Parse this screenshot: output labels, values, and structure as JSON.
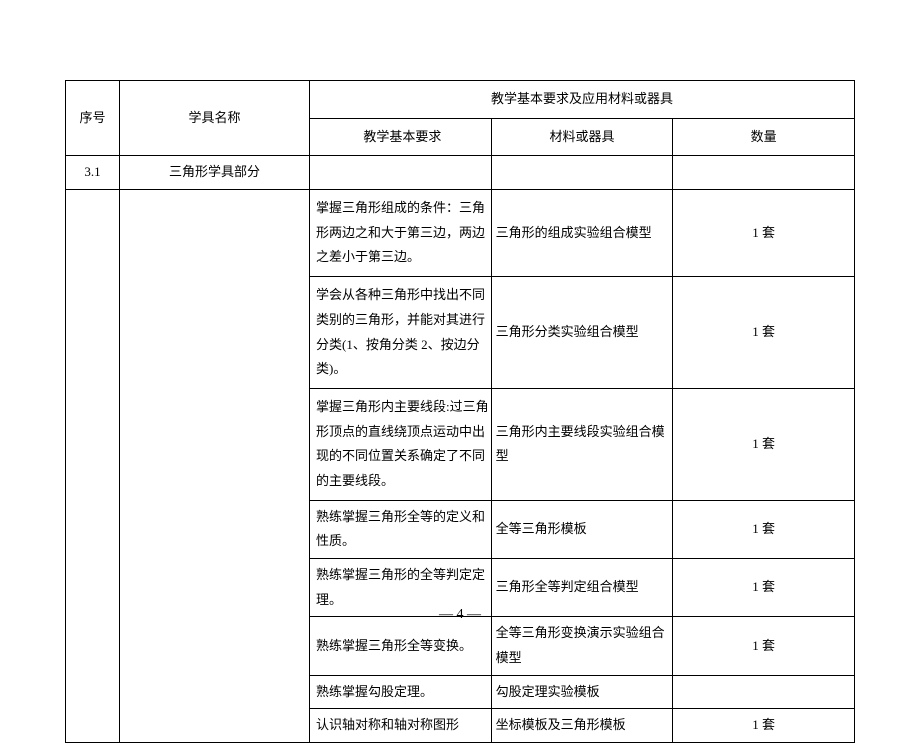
{
  "headers": {
    "seq": "序号",
    "name": "学具名称",
    "group": "教学基本要求及应用材料或器具",
    "req": "教学基本要求",
    "mat": "材料或器具",
    "qty": "数量"
  },
  "section": {
    "seq": "3.1",
    "name": "三角形学具部分"
  },
  "rows": [
    {
      "req": "掌握三角形组成的条件：三角形两边之和大于第三边，两边之差小于第三边。",
      "mat": "三角形的组成实验组合模型",
      "qty": "1 套"
    },
    {
      "req": "学会从各种三角形中找出不同类别的三角形，并能对其进行分类(1、按角分类 2、按边分类)。",
      "mat": "三角形分类实验组合模型",
      "qty": "1 套"
    },
    {
      "req": "掌握三角形内主要线段:过三角形顶点的直线绕顶点运动中出现的不同位置关系确定了不同的主要线段。",
      "mat": "三角形内主要线段实验组合模型",
      "qty": "1 套"
    },
    {
      "req": "熟练掌握三角形全等的定义和性质。",
      "mat": "全等三角形模板",
      "qty": "1 套"
    },
    {
      "req": "熟练掌握三角形的全等判定定理。",
      "mat": "三角形全等判定组合模型",
      "qty": "1 套"
    },
    {
      "req": "熟练掌握三角形全等变换。",
      "mat": "全等三角形变换演示实验组合模型",
      "qty": "1 套"
    },
    {
      "req": "熟练掌握勾股定理。",
      "mat": "勾股定理实验模板",
      "qty": ""
    },
    {
      "req": "认识轴对称和轴对称图形",
      "mat": "坐标模板及三角形模板",
      "qty": "1 套"
    }
  ],
  "pageNumber": "— 4 —"
}
